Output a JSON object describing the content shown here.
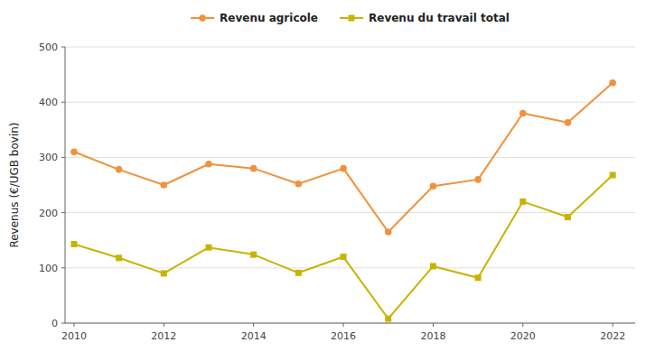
{
  "chart_data": {
    "type": "line",
    "x": [
      2010,
      2011,
      2012,
      2013,
      2014,
      2015,
      2016,
      2017,
      2018,
      2019,
      2020,
      2021,
      2022
    ],
    "xlim": [
      2009.8,
      2022.5
    ],
    "xticks": [
      2010,
      2012,
      2014,
      2016,
      2018,
      2020,
      2022
    ],
    "ylim": [
      0,
      500
    ],
    "yticks": [
      0,
      100,
      200,
      300,
      400,
      500
    ],
    "ylabel": "Revenus (€/UGB bovin)",
    "grid": "y",
    "legend": "top",
    "series": [
      {
        "name": "Revenu agricole",
        "color": "#f0923c",
        "marker": "circle",
        "values": [
          310,
          278,
          250,
          288,
          280,
          252,
          280,
          165,
          248,
          260,
          380,
          363,
          435
        ]
      },
      {
        "name": "Revenu du travail total",
        "color": "#c8b400",
        "marker": "square",
        "values": [
          143,
          118,
          90,
          137,
          124,
          91,
          120,
          8,
          103,
          82,
          220,
          192,
          268
        ]
      }
    ]
  }
}
